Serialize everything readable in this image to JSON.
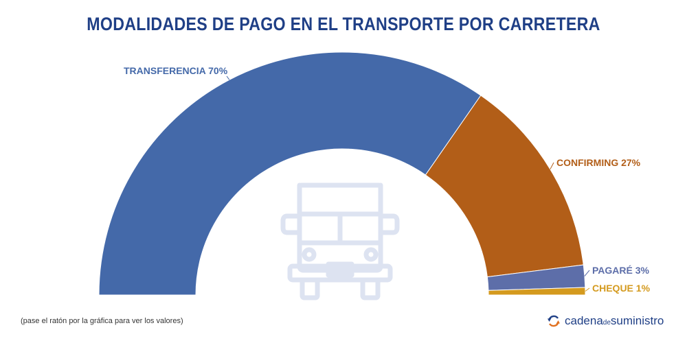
{
  "title": "MODALIDADES DE PAGO EN EL TRANSPORTE POR CARRETERA",
  "footnote": "(pase el ratón por la gráfica para ver los valores)",
  "brand": {
    "logo_icon": "refresh-arrows-icon",
    "name_left": "cadena",
    "name_mid": "de",
    "name_right": "suministro"
  },
  "center_icon": "truck-front-icon",
  "colors": {
    "title": "#1f3f86",
    "truck": "#dde3f1"
  },
  "chart_data": {
    "type": "pie",
    "subtype": "semicircle-donut",
    "slices": [
      {
        "label": "TRANSFERENCIA 70%",
        "value": 70,
        "color": "#4469a9"
      },
      {
        "label": "CONFIRMING 27%",
        "value": 27,
        "color": "#b25e18"
      },
      {
        "label": "PAGARÉ 3%",
        "value": 3,
        "color": "#5d6ea9"
      },
      {
        "label": "CHEQUE 1%",
        "value": 1,
        "color": "#d49a1e"
      }
    ]
  }
}
